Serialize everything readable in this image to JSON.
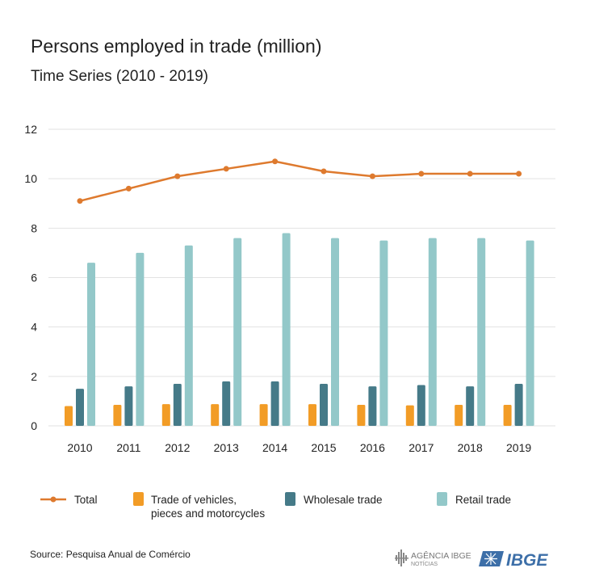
{
  "header": {
    "title": "Persons employed in trade (million)",
    "subtitle": "Time Series (2010 - 2019)"
  },
  "footer": {
    "source": "Source: Pesquisa Anual de Comércio",
    "agencia_label": "AGÊNCIA IBGE",
    "noticias_label": "NOTÍCIAS",
    "ibge_label": "IBGE"
  },
  "colors": {
    "total": "#de7a2e",
    "vehicles": "#f29c26",
    "wholesale": "#457a88",
    "retail": "#93c8c9",
    "grid": "#e2e2e2"
  },
  "chart_data": {
    "type": "bar",
    "categories": [
      "2010",
      "2011",
      "2012",
      "2013",
      "2014",
      "2015",
      "2016",
      "2017",
      "2018",
      "2019"
    ],
    "ylim": [
      0,
      12
    ],
    "yticks": [
      "0",
      "2",
      "4",
      "6",
      "8",
      "10",
      "12"
    ],
    "grid": true,
    "legend_position": "bottom",
    "series": [
      {
        "name": "Total",
        "kind": "line",
        "values": [
          9.1,
          9.6,
          10.1,
          10.4,
          10.7,
          10.3,
          10.1,
          10.2,
          10.2,
          10.2
        ]
      },
      {
        "name": "Trade of vehicles, pieces and motorcycles",
        "kind": "bar",
        "values": [
          0.8,
          0.85,
          0.88,
          0.88,
          0.88,
          0.88,
          0.85,
          0.83,
          0.85,
          0.85
        ]
      },
      {
        "name": "Wholesale trade",
        "kind": "bar",
        "values": [
          1.5,
          1.6,
          1.7,
          1.8,
          1.8,
          1.7,
          1.6,
          1.65,
          1.6,
          1.7
        ]
      },
      {
        "name": "Retail trade",
        "kind": "bar",
        "values": [
          6.6,
          7.0,
          7.3,
          7.6,
          7.8,
          7.6,
          7.5,
          7.6,
          7.6,
          7.5
        ]
      }
    ],
    "legend": {
      "total": "Total",
      "vehicles_line1": "Trade of vehicles,",
      "vehicles_line2": "pieces and motorcycles",
      "wholesale": "Wholesale trade",
      "retail": "Retail trade"
    }
  }
}
